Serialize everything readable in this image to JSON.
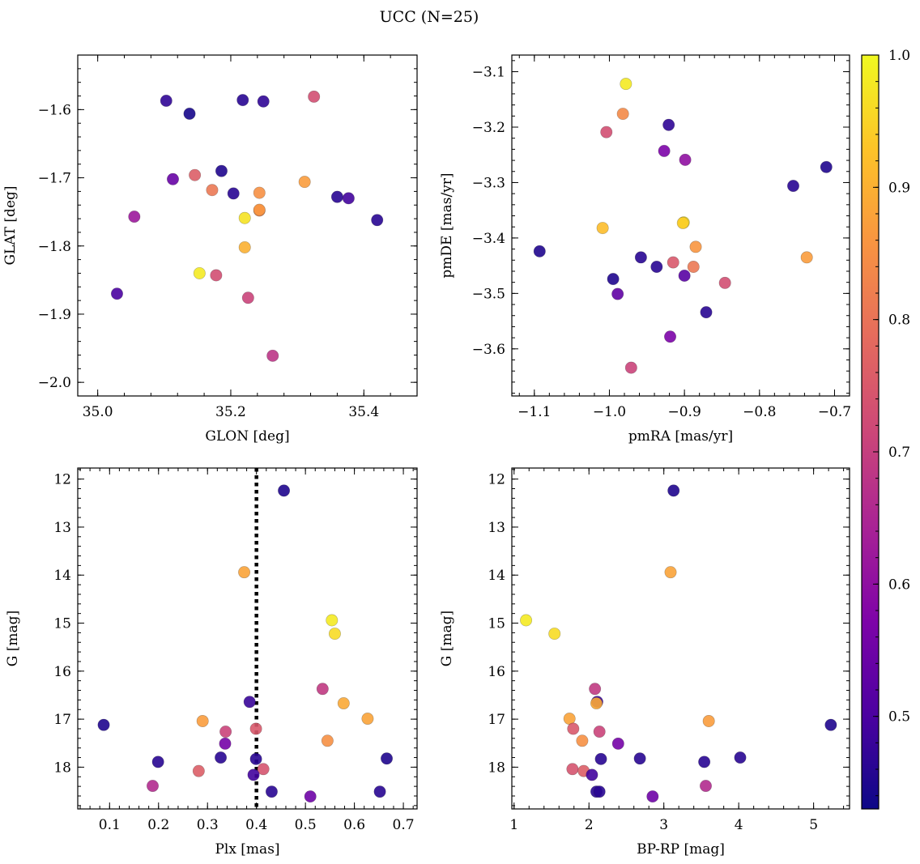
{
  "chart_data": {
    "title": "UCC (N=25)",
    "colorbar": {
      "colormap": "plasma",
      "range": [
        0.43,
        1.0
      ],
      "ticks": [
        0.5,
        0.6,
        0.7,
        0.8,
        0.9,
        1.0
      ],
      "tick_labels": [
        "0.5",
        "0.6",
        "0.7",
        "0.8",
        "0.9",
        "1.0"
      ]
    },
    "panels": [
      {
        "id": "glon-glat",
        "type": "scatter",
        "xlabel": "GLON [deg]",
        "ylabel": "GLAT [deg]",
        "xlim": [
          34.97,
          35.48
        ],
        "ylim": [
          -2.02,
          -1.52
        ],
        "inverted_y": false,
        "xticks": [
          35.0,
          35.2,
          35.4
        ],
        "xtick_labels": [
          "35.0",
          "35.2",
          "35.4"
        ],
        "yticks": [
          -1.6,
          -1.7,
          -1.8,
          -1.9,
          -2.0
        ],
        "ytick_labels": [
          "−1.6",
          "−1.7",
          "−1.8",
          "−1.9",
          "−2.0"
        ],
        "points": [
          {
            "x": 35.325,
            "y": -1.581,
            "c": 0.73
          },
          {
            "x": 35.103,
            "y": -1.587,
            "c": 0.47
          },
          {
            "x": 35.218,
            "y": -1.586,
            "c": 0.46
          },
          {
            "x": 35.249,
            "y": -1.588,
            "c": 0.47
          },
          {
            "x": 35.138,
            "y": -1.606,
            "c": 0.44
          },
          {
            "x": 35.186,
            "y": -1.69,
            "c": 0.45
          },
          {
            "x": 35.146,
            "y": -1.696,
            "c": 0.76
          },
          {
            "x": 35.113,
            "y": -1.702,
            "c": 0.54
          },
          {
            "x": 35.311,
            "y": -1.706,
            "c": 0.87
          },
          {
            "x": 35.172,
            "y": -1.718,
            "c": 0.81
          },
          {
            "x": 35.243,
            "y": -1.722,
            "c": 0.85
          },
          {
            "x": 35.204,
            "y": -1.723,
            "c": 0.46
          },
          {
            "x": 35.36,
            "y": -1.728,
            "c": 0.46
          },
          {
            "x": 35.377,
            "y": -1.73,
            "c": 0.49
          },
          {
            "x": 35.243,
            "y": -1.748,
            "c": 0.83
          },
          {
            "x": 35.221,
            "y": -1.759,
            "c": 0.97
          },
          {
            "x": 35.055,
            "y": -1.757,
            "c": 0.62
          },
          {
            "x": 35.42,
            "y": -1.762,
            "c": 0.46
          },
          {
            "x": 35.221,
            "y": -1.802,
            "c": 0.9
          },
          {
            "x": 35.153,
            "y": -1.84,
            "c": 0.98
          },
          {
            "x": 35.178,
            "y": -1.843,
            "c": 0.73
          },
          {
            "x": 35.029,
            "y": -1.87,
            "c": 0.5
          },
          {
            "x": 35.226,
            "y": -1.876,
            "c": 0.71
          },
          {
            "x": 35.263,
            "y": -1.961,
            "c": 0.68
          },
          {
            "x": 35.243,
            "y": -1.747,
            "c": 0.86
          }
        ]
      },
      {
        "id": "pmra-pmde",
        "type": "scatter",
        "xlabel": "pmRA [mas/yr]",
        "ylabel": "pmDE [mas/yr]",
        "xlim": [
          -1.13,
          -0.68
        ],
        "ylim": [
          -3.685,
          -3.07
        ],
        "inverted_y": false,
        "xticks": [
          -1.1,
          -1.0,
          -0.9,
          -0.8,
          -0.7
        ],
        "xtick_labels": [
          "−1.1",
          "−1.0",
          "−0.9",
          "−0.8",
          "−0.7"
        ],
        "yticks": [
          -3.1,
          -3.2,
          -3.3,
          -3.4,
          -3.5,
          -3.6
        ],
        "ytick_labels": [
          "−3.1",
          "−3.2",
          "−3.3",
          "−3.4",
          "−3.5",
          "−3.6"
        ],
        "points": [
          {
            "x": -0.978,
            "y": -3.122,
            "c": 0.98
          },
          {
            "x": -0.982,
            "y": -3.176,
            "c": 0.84
          },
          {
            "x": -0.921,
            "y": -3.196,
            "c": 0.47
          },
          {
            "x": -1.004,
            "y": -3.209,
            "c": 0.73
          },
          {
            "x": -0.927,
            "y": -3.243,
            "c": 0.57
          },
          {
            "x": -0.899,
            "y": -3.259,
            "c": 0.6
          },
          {
            "x": -0.711,
            "y": -3.272,
            "c": 0.45
          },
          {
            "x": -0.755,
            "y": -3.306,
            "c": 0.46
          },
          {
            "x": -0.901,
            "y": -3.372,
            "c": 0.97
          },
          {
            "x": -1.009,
            "y": -3.382,
            "c": 0.92
          },
          {
            "x": -0.885,
            "y": -3.416,
            "c": 0.86
          },
          {
            "x": -1.093,
            "y": -3.424,
            "c": 0.45
          },
          {
            "x": -0.737,
            "y": -3.435,
            "c": 0.87
          },
          {
            "x": -0.958,
            "y": -3.435,
            "c": 0.46
          },
          {
            "x": -0.915,
            "y": -3.444,
            "c": 0.75
          },
          {
            "x": -0.888,
            "y": -3.452,
            "c": 0.81
          },
          {
            "x": -0.937,
            "y": -3.452,
            "c": 0.46
          },
          {
            "x": -0.9,
            "y": -3.468,
            "c": 0.52
          },
          {
            "x": -0.995,
            "y": -3.474,
            "c": 0.45
          },
          {
            "x": -0.846,
            "y": -3.481,
            "c": 0.73
          },
          {
            "x": -0.989,
            "y": -3.501,
            "c": 0.53
          },
          {
            "x": -0.871,
            "y": -3.534,
            "c": 0.46
          },
          {
            "x": -0.919,
            "y": -3.578,
            "c": 0.57
          },
          {
            "x": -0.971,
            "y": -3.634,
            "c": 0.71
          },
          {
            "x": -0.902,
            "y": -3.373,
            "c": 0.94
          }
        ]
      },
      {
        "id": "plx-g",
        "type": "scatter",
        "xlabel": "Plx [mas]",
        "ylabel": "G [mag]",
        "xlim": [
          0.035,
          0.728
        ],
        "ylim": [
          18.87,
          11.77
        ],
        "inverted_y": true,
        "vline": {
          "x": 0.4,
          "style": "dotted"
        },
        "xticks": [
          0.1,
          0.2,
          0.3,
          0.4,
          0.5,
          0.6,
          0.7
        ],
        "xtick_labels": [
          "0.1",
          "0.2",
          "0.3",
          "0.4",
          "0.5",
          "0.6",
          "0.7"
        ],
        "yticks": [
          12,
          13,
          14,
          15,
          16,
          17,
          18
        ],
        "ytick_labels": [
          "12",
          "13",
          "14",
          "15",
          "16",
          "17",
          "18"
        ],
        "points": [
          {
            "x": 0.456,
            "y": 12.24,
            "c": 0.45
          },
          {
            "x": 0.375,
            "y": 13.94,
            "c": 0.88
          },
          {
            "x": 0.554,
            "y": 14.94,
            "c": 0.98
          },
          {
            "x": 0.56,
            "y": 15.22,
            "c": 0.96
          },
          {
            "x": 0.535,
            "y": 16.37,
            "c": 0.69
          },
          {
            "x": 0.578,
            "y": 16.67,
            "c": 0.89
          },
          {
            "x": 0.386,
            "y": 16.64,
            "c": 0.48
          },
          {
            "x": 0.627,
            "y": 16.99,
            "c": 0.88
          },
          {
            "x": 0.29,
            "y": 17.04,
            "c": 0.87
          },
          {
            "x": 0.088,
            "y": 17.12,
            "c": 0.45
          },
          {
            "x": 0.399,
            "y": 17.2,
            "c": 0.75
          },
          {
            "x": 0.337,
            "y": 17.26,
            "c": 0.71
          },
          {
            "x": 0.545,
            "y": 17.45,
            "c": 0.85
          },
          {
            "x": 0.336,
            "y": 17.51,
            "c": 0.56
          },
          {
            "x": 0.327,
            "y": 17.8,
            "c": 0.46
          },
          {
            "x": 0.399,
            "y": 17.83,
            "c": 0.46
          },
          {
            "x": 0.666,
            "y": 17.82,
            "c": 0.45
          },
          {
            "x": 0.199,
            "y": 17.89,
            "c": 0.46
          },
          {
            "x": 0.414,
            "y": 18.04,
            "c": 0.74
          },
          {
            "x": 0.282,
            "y": 18.08,
            "c": 0.76
          },
          {
            "x": 0.394,
            "y": 18.16,
            "c": 0.49
          },
          {
            "x": 0.188,
            "y": 18.39,
            "c": 0.66
          },
          {
            "x": 0.431,
            "y": 18.51,
            "c": 0.46
          },
          {
            "x": 0.652,
            "y": 18.51,
            "c": 0.46
          },
          {
            "x": 0.51,
            "y": 18.61,
            "c": 0.55
          }
        ]
      },
      {
        "id": "bprp-g",
        "type": "scatter",
        "xlabel": "BP-RP [mag]",
        "ylabel": "G [mag]",
        "xlim": [
          0.97,
          5.48
        ],
        "ylim": [
          18.87,
          11.77
        ],
        "inverted_y": true,
        "xticks": [
          1,
          2,
          3,
          4,
          5
        ],
        "xtick_labels": [
          "1",
          "2",
          "3",
          "4",
          "5"
        ],
        "yticks": [
          12,
          13,
          14,
          15,
          16,
          17,
          18
        ],
        "ytick_labels": [
          "12",
          "13",
          "14",
          "15",
          "16",
          "17",
          "18"
        ],
        "points": [
          {
            "x": 3.13,
            "y": 12.24,
            "c": 0.45
          },
          {
            "x": 3.09,
            "y": 13.94,
            "c": 0.88
          },
          {
            "x": 1.16,
            "y": 14.94,
            "c": 0.98
          },
          {
            "x": 1.54,
            "y": 15.22,
            "c": 0.96
          },
          {
            "x": 2.08,
            "y": 16.37,
            "c": 0.69
          },
          {
            "x": 2.11,
            "y": 16.64,
            "c": 0.48
          },
          {
            "x": 2.1,
            "y": 16.67,
            "c": 0.89
          },
          {
            "x": 1.74,
            "y": 16.99,
            "c": 0.88
          },
          {
            "x": 3.6,
            "y": 17.04,
            "c": 0.87
          },
          {
            "x": 5.23,
            "y": 17.12,
            "c": 0.45
          },
          {
            "x": 1.79,
            "y": 17.2,
            "c": 0.75
          },
          {
            "x": 2.14,
            "y": 17.26,
            "c": 0.71
          },
          {
            "x": 1.91,
            "y": 17.45,
            "c": 0.85
          },
          {
            "x": 2.39,
            "y": 17.51,
            "c": 0.56
          },
          {
            "x": 2.16,
            "y": 17.83,
            "c": 0.46
          },
          {
            "x": 2.68,
            "y": 17.82,
            "c": 0.46
          },
          {
            "x": 4.02,
            "y": 17.8,
            "c": 0.46
          },
          {
            "x": 3.54,
            "y": 17.89,
            "c": 0.46
          },
          {
            "x": 1.78,
            "y": 18.04,
            "c": 0.74
          },
          {
            "x": 1.93,
            "y": 18.08,
            "c": 0.76
          },
          {
            "x": 2.04,
            "y": 18.16,
            "c": 0.49
          },
          {
            "x": 3.56,
            "y": 18.39,
            "c": 0.66
          },
          {
            "x": 2.1,
            "y": 18.51,
            "c": 0.46
          },
          {
            "x": 2.14,
            "y": 18.51,
            "c": 0.46
          },
          {
            "x": 2.85,
            "y": 18.61,
            "c": 0.55
          }
        ]
      }
    ]
  }
}
